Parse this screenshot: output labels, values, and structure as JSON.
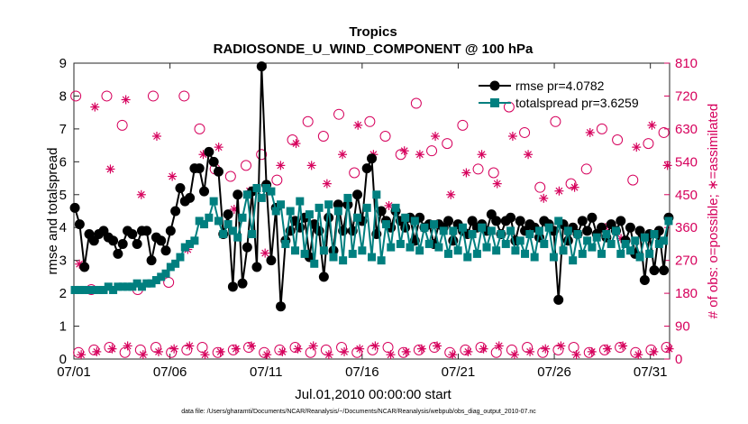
{
  "chart_data": {
    "type": "line",
    "title": "Tropics",
    "subtitle": "RADIOSONDE_U_WIND_COMPONENT @ 100 hPa",
    "xlabel": "Jul.01,2010 00:00:00 start",
    "ylabel": "rmse and totalspread",
    "ylabel_right": "# of obs: o=possible; ∗=assimilated",
    "x_ticks": [
      {
        "day": 0,
        "label": "07/01"
      },
      {
        "day": 5,
        "label": "07/06"
      },
      {
        "day": 10,
        "label": "07/11"
      },
      {
        "day": 15,
        "label": "07/16"
      },
      {
        "day": 20,
        "label": "07/21"
      },
      {
        "day": 25,
        "label": "07/26"
      },
      {
        "day": 30,
        "label": "07/31"
      }
    ],
    "xlim": [
      0,
      31
    ],
    "ylim": [
      0,
      9
    ],
    "y_ticks": [
      "0",
      "1",
      "2",
      "3",
      "4",
      "5",
      "6",
      "7",
      "8",
      "9"
    ],
    "ylim_right": [
      0,
      810
    ],
    "y_ticks_right": [
      "0",
      "90",
      "180",
      "270",
      "360",
      "450",
      "540",
      "630",
      "720",
      "810"
    ],
    "colors": {
      "rmse": "#000000",
      "totalspread": "#007f7f",
      "obs": "#d6005c"
    },
    "series": [
      {
        "name": "rmse pr=4.0782",
        "values": [
          4.6,
          4.1,
          2.8,
          3.8,
          3.6,
          3.8,
          3.9,
          3.7,
          3.6,
          3.2,
          3.5,
          3.9,
          3.8,
          3.5,
          3.9,
          3.9,
          3.0,
          3.7,
          3.6,
          3.3,
          3.9,
          4.5,
          5.2,
          4.8,
          4.9,
          5.8,
          5.8,
          5.1,
          6.3,
          6.0,
          5.7,
          3.8,
          4.4,
          2.2,
          5.0,
          2.3,
          3.4,
          5.1,
          2.8,
          8.9,
          5.3,
          3.0,
          4.6,
          1.6,
          3.6,
          3.9,
          4.2,
          4.0,
          4.3,
          3.1,
          4.1,
          3.9,
          2.5,
          4.3,
          3.3,
          4.7,
          3.9,
          4.7,
          3.9,
          5.0,
          4.2,
          5.8,
          6.1,
          3.8,
          4.5,
          4.2,
          4.0,
          4.5,
          4.2,
          4.0,
          4.3,
          3.6,
          4.3,
          4.0,
          4.1,
          3.5,
          4.1,
          4.0,
          4.2,
          3.6,
          4.1,
          3.9,
          3.8,
          4.2,
          4.0,
          4.1,
          3.9,
          4.4,
          4.2,
          3.8,
          4.2,
          4.3,
          3.6,
          4.2,
          3.9,
          4.1,
          4.0,
          3.7,
          4.2,
          4.1,
          3.9,
          1.8,
          4.1,
          3.6,
          4.0,
          3.8,
          4.2,
          3.9,
          4.3,
          3.8,
          4.0,
          3.7,
          4.1,
          3.9,
          4.2,
          3.6,
          4.0,
          3.2,
          3.9,
          2.4,
          3.8,
          2.7,
          3.9,
          2.7,
          4.3
        ],
        "count": 125
      },
      {
        "name": "totalspread pr=3.6259",
        "values": [
          2.1,
          2.1,
          2.1,
          2.1,
          2.1,
          2.1,
          2.1,
          2.2,
          2.1,
          2.2,
          2.2,
          2.2,
          2.2,
          2.3,
          2.2,
          2.3,
          2.3,
          2.4,
          2.5,
          2.6,
          2.8,
          2.9,
          3.1,
          3.4,
          3.5,
          3.6,
          4.2,
          4.1,
          4.3,
          4.8,
          4.2,
          3.8,
          4.1,
          3.9,
          3.7,
          4.3,
          5.0,
          3.8,
          5.2,
          4.9,
          5.2,
          5.1,
          4.5,
          4.7,
          3.5,
          4.5,
          3.3,
          4.8,
          3.2,
          4.4,
          2.9,
          4.6,
          3.3,
          4.7,
          3.1,
          4.5,
          3.0,
          4.9,
          3.2,
          4.3,
          3.3,
          4.6,
          3.1,
          5.0,
          3.0,
          4.1,
          3.4,
          4.6,
          3.5,
          4.3,
          3.4,
          4.2,
          3.3,
          4.0,
          3.5,
          4.1,
          3.4,
          3.9,
          3.2,
          3.9,
          3.3,
          4.0,
          3.1,
          3.8,
          3.2,
          4.0,
          3.4,
          3.9,
          3.3,
          3.8,
          3.5,
          3.9,
          3.3,
          3.6,
          3.2,
          3.8,
          3.1,
          3.9,
          3.5,
          4.0,
          3.1,
          4.2,
          3.3,
          3.9,
          3.0,
          3.8,
          3.2,
          3.6,
          3.4,
          3.7,
          3.2,
          3.8,
          3.5,
          3.9,
          3.2,
          3.5,
          3.3,
          3.6,
          3.1,
          3.7,
          3.2,
          3.8,
          3.5,
          3.6,
          4.2
        ],
        "count": 125
      },
      {
        "name": "possible",
        "values": [
          720,
          190,
          720,
          640,
          190,
          720,
          210,
          720,
          630,
          520,
          500,
          530,
          560,
          490,
          600,
          650,
          610,
          670,
          510,
          650,
          610,
          560,
          700,
          570,
          590,
          640,
          520,
          510,
          690,
          620,
          470,
          650,
          480,
          520,
          630,
          600,
          490,
          590,
          620
        ],
        "count": 39
      },
      {
        "name": "assimilated",
        "values": [
          260,
          690,
          520,
          710,
          450,
          610,
          500,
          300,
          560,
          580,
          410,
          460,
          290,
          530,
          590,
          530,
          480,
          560,
          640,
          560,
          420,
          570,
          560,
          610,
          450,
          510,
          560,
          480,
          610,
          560,
          440,
          460,
          470,
          620,
          360,
          330,
          580,
          640,
          530
        ],
        "count": 39
      }
    ]
  },
  "legend": {
    "rmse_label": "rmse pr=4.0782",
    "totalspread_label": "totalspread pr=3.6259"
  },
  "footnote": "data file: /Users/gharamti/Documents/NCAR/Reanalysis/~/Documents/NCAR/Reanalysis/webpub/obs_diag_output_2010-07.nc"
}
